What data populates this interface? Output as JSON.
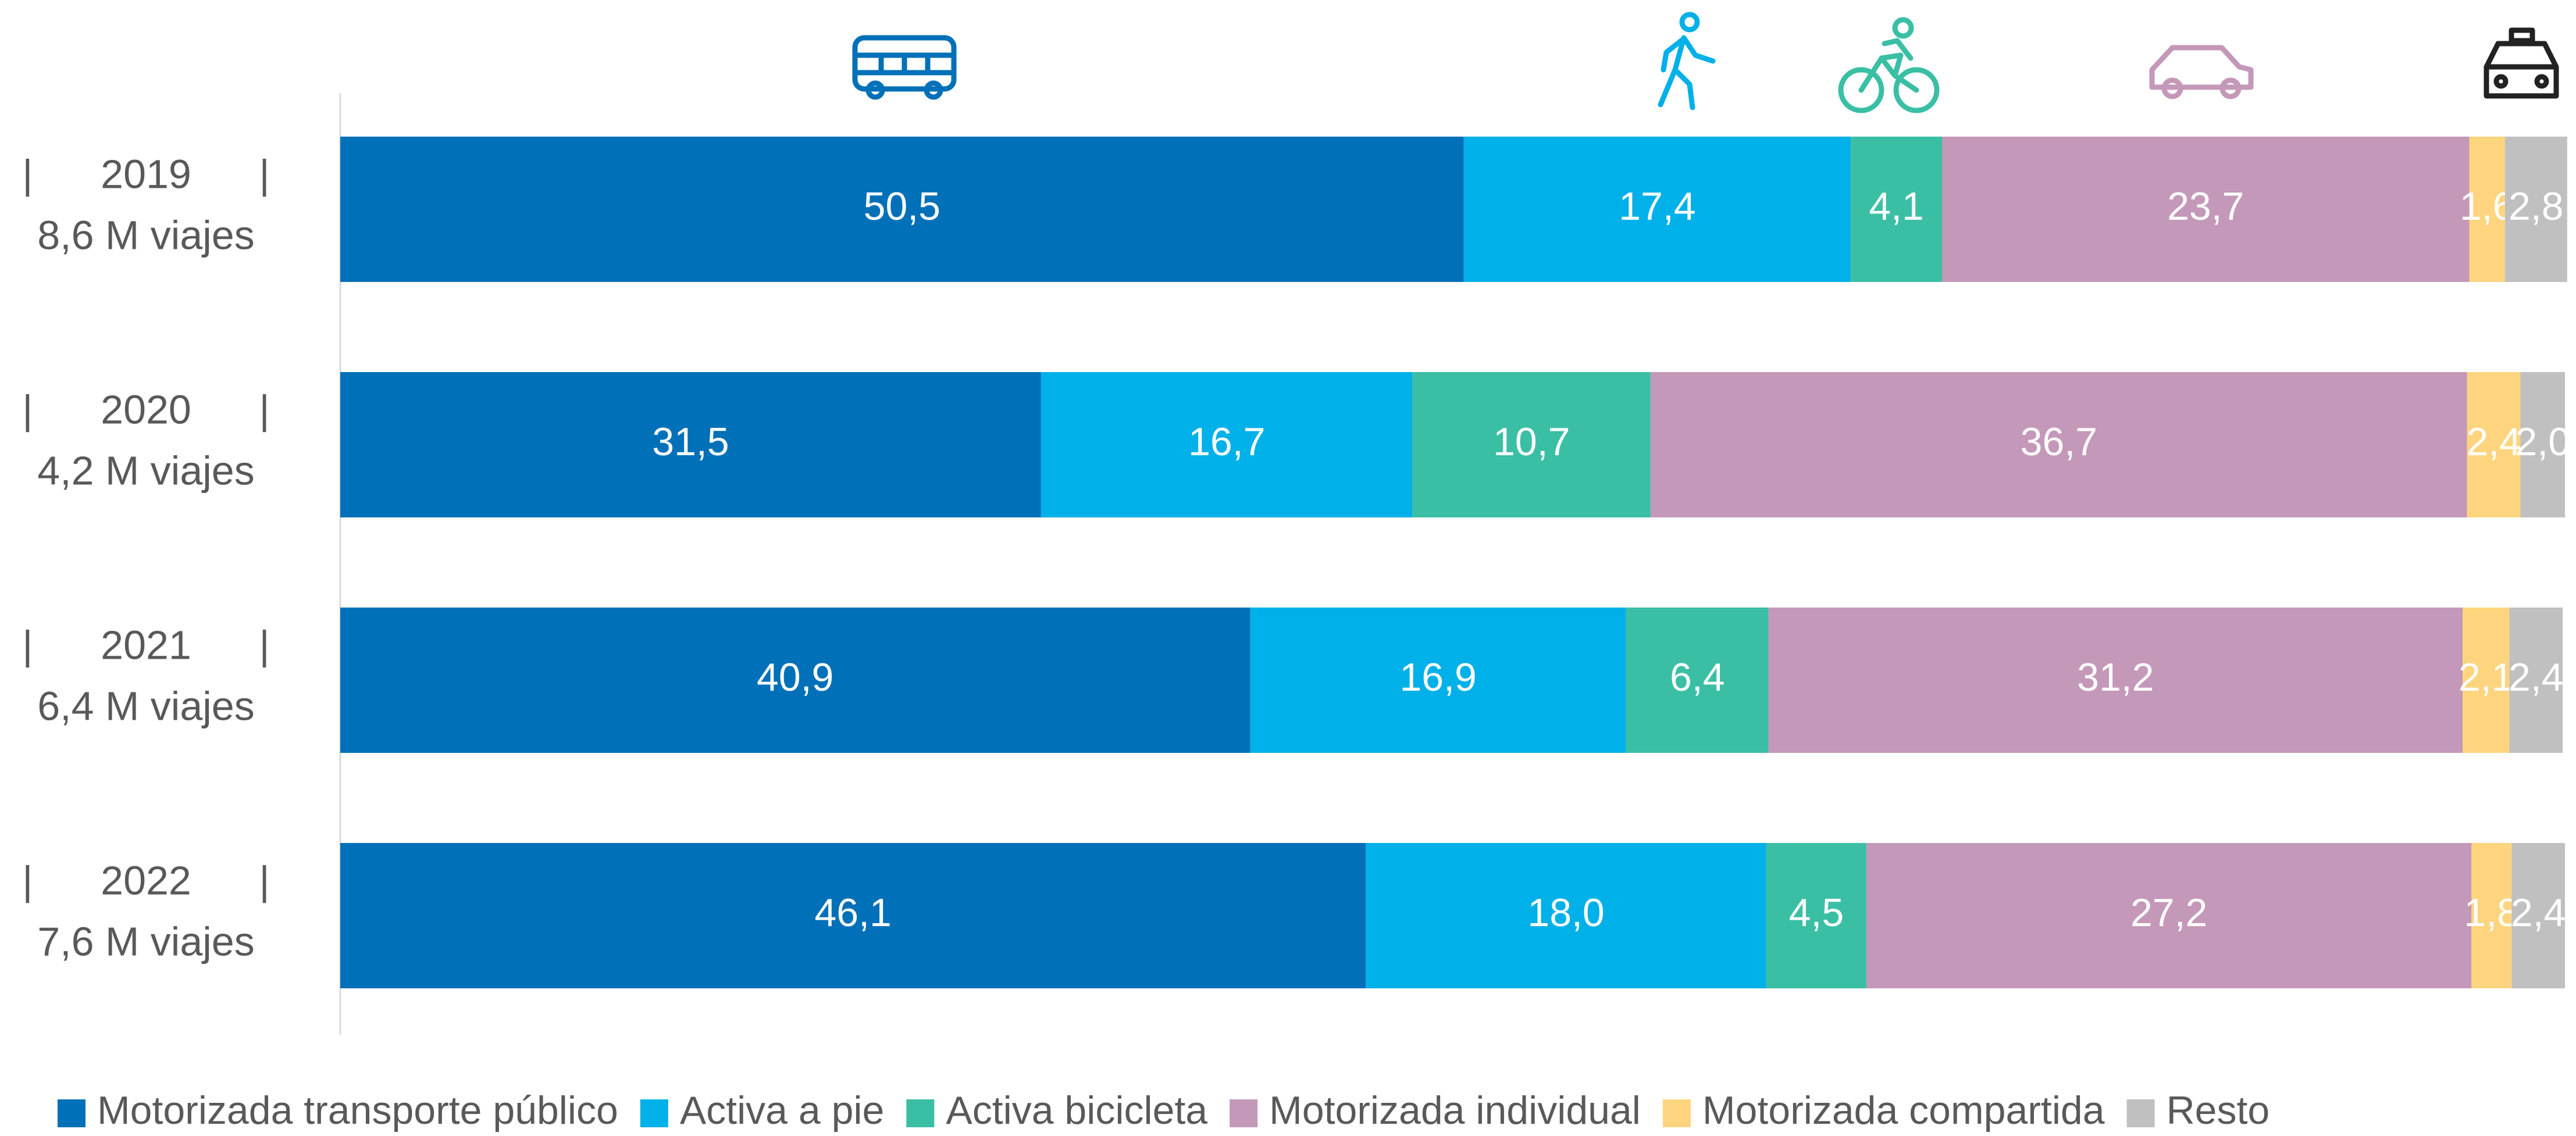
{
  "chart_data": {
    "type": "stacked_bar_horizontal",
    "categories": [
      "|      2019      |",
      "|      2020      |",
      "|      2021      |",
      "|      2022      |"
    ],
    "trips": [
      "8,6 M viajes",
      "4,2 M viajes",
      "6,4 M viajes",
      "7,6 M viajes"
    ],
    "xlim": [
      0,
      100
    ],
    "series": [
      {
        "name": "Motorizada transporte público",
        "color": "#0070b8",
        "values": [
          50.5,
          31.5,
          40.9,
          46.1
        ],
        "value_labels": [
          "50,5",
          "31,5",
          "40,9",
          "46,1"
        ]
      },
      {
        "name": "Activa a pie",
        "color": "#00b0e8",
        "values": [
          17.4,
          16.7,
          16.9,
          18.0
        ],
        "value_labels": [
          "17,4",
          "16,7",
          "16,9",
          "18,0"
        ]
      },
      {
        "name": "Activa bicicleta",
        "color": "#3abfa5",
        "values": [
          4.1,
          10.7,
          6.4,
          4.5
        ],
        "value_labels": [
          "4,1",
          "10,7",
          "6,4",
          "4,5"
        ]
      },
      {
        "name": "Motorizada individual",
        "color": "#c498b8",
        "values": [
          23.7,
          36.7,
          31.2,
          27.2
        ],
        "value_labels": [
          "23,7",
          "36,7",
          "31,2",
          "27,2"
        ]
      },
      {
        "name": "Motorizada compartida",
        "color": "#fed57e",
        "values": [
          1.6,
          2.4,
          2.1,
          1.8
        ],
        "value_labels": [
          "1,6",
          "2,4",
          "2,1",
          "1,8"
        ]
      },
      {
        "name": "Resto",
        "color": "#c0c0c0",
        "values": [
          2.8,
          2.0,
          2.4,
          2.4
        ],
        "value_labels": [
          "2,8",
          "2,0",
          "2,4",
          "2,4"
        ]
      }
    ],
    "legend": "bottom"
  }
}
